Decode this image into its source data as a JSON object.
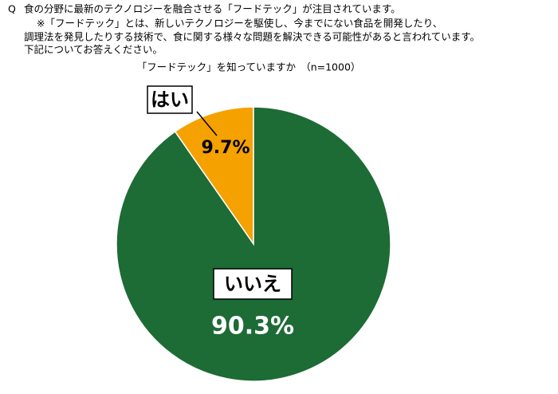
{
  "chart_data": {
    "type": "pie",
    "question_label": "Q",
    "question": [
      "食の分野に最新のテクノロジーを融合させる「フードテック」が注目されています。",
      "※「フードテック」とは、新しいテクノロジーを駆使し、今までにない食品を開発したり、",
      "調理法を発見したりする技術で、食に関する様々な問題を解決できる可能性があると言われています。",
      "下記についてお答えください。"
    ],
    "title": "「フードテック」を知っていますか　（n=1000）",
    "categories": [
      "はい",
      "いいえ"
    ],
    "values": [
      9.7,
      90.3
    ],
    "value_labels": [
      "9.7%",
      "90.3%"
    ],
    "colors": [
      "#f5a100",
      "#1d6b35"
    ]
  }
}
